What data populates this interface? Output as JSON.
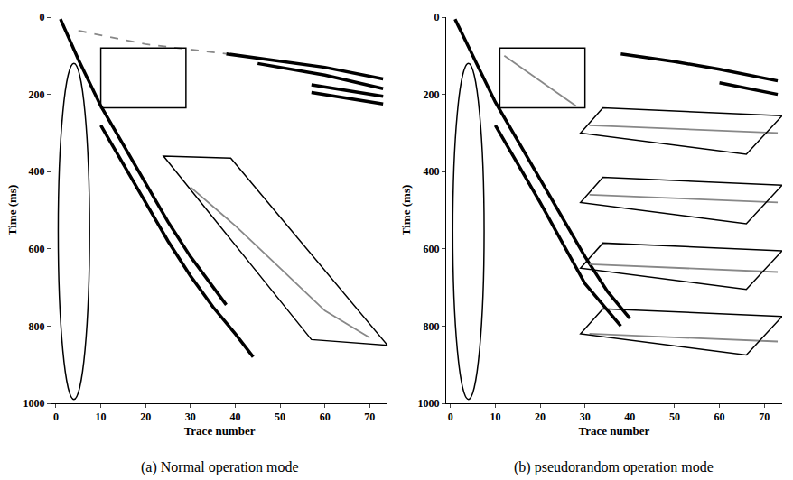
{
  "chart_data": [
    {
      "type": "line",
      "title": "(a) Normal operation mode",
      "x_label": "Trace number",
      "y_label": "Time (ms)",
      "xlim": [
        -1,
        74
      ],
      "xticks": [
        0,
        10,
        20,
        30,
        40,
        50,
        60,
        70
      ],
      "ylim": [
        0,
        1000
      ],
      "yticks": [
        0,
        200,
        400,
        600,
        800,
        1000
      ],
      "grid": false,
      "series": [
        {
          "color": "#000000",
          "line_style": "solid",
          "x": [
            1,
            5,
            10,
            15,
            20,
            25,
            30,
            35,
            38
          ],
          "values": [
            5,
            110,
            230,
            330,
            430,
            530,
            620,
            700,
            745
          ]
        },
        {
          "color": "#000000",
          "line_style": "solid",
          "x": [
            10,
            15,
            20,
            25,
            30,
            35,
            40,
            44
          ],
          "values": [
            280,
            380,
            480,
            580,
            670,
            750,
            820,
            880
          ]
        },
        {
          "color": "#888888",
          "line_style": "solid",
          "x": [
            30,
            40,
            50,
            60,
            70
          ],
          "values": [
            440,
            540,
            650,
            760,
            830
          ]
        },
        {
          "color": "#888888",
          "line_style": "dashed",
          "x": [
            5,
            20,
            38
          ],
          "values": [
            35,
            70,
            95
          ]
        },
        {
          "color": "#000000",
          "line_style": "solid",
          "x": [
            38,
            50,
            60,
            73
          ],
          "values": [
            95,
            115,
            130,
            160
          ]
        },
        {
          "color": "#000000",
          "line_style": "solid",
          "x": [
            45,
            60,
            73
          ],
          "values": [
            120,
            150,
            185
          ]
        },
        {
          "color": "#000000",
          "line_style": "solid",
          "x": [
            57,
            65,
            73
          ],
          "values": [
            175,
            190,
            205
          ]
        },
        {
          "color": "#000000",
          "line_style": "solid",
          "x": [
            57,
            65,
            73
          ],
          "values": [
            195,
            210,
            225
          ]
        }
      ],
      "regions": [
        {
          "shape": "ellipse",
          "x": [
            0.5,
            7.5
          ],
          "y": [
            120,
            990
          ]
        },
        {
          "shape": "rectangle",
          "x": [
            10,
            29
          ],
          "y": [
            80,
            235
          ]
        },
        {
          "shape": "polygon",
          "x": [
            24,
            39,
            74,
            57
          ],
          "y": [
            360,
            365,
            850,
            835
          ]
        }
      ]
    },
    {
      "type": "line",
      "title": "(b) pseudorandom operation mode",
      "x_label": "Trace number",
      "y_label": "Time (ms)",
      "xlim": [
        -1,
        74
      ],
      "xticks": [
        0,
        10,
        20,
        30,
        40,
        50,
        60,
        70
      ],
      "ylim": [
        0,
        1000
      ],
      "yticks": [
        0,
        200,
        400,
        600,
        800,
        1000
      ],
      "grid": false,
      "series": [
        {
          "color": "#000000",
          "line_style": "solid",
          "x": [
            1,
            5,
            10,
            15,
            20,
            25,
            30,
            35,
            40
          ],
          "values": [
            5,
            100,
            220,
            320,
            420,
            520,
            620,
            710,
            780
          ]
        },
        {
          "color": "#000000",
          "line_style": "solid",
          "x": [
            10,
            20,
            30,
            38
          ],
          "values": [
            280,
            480,
            690,
            800
          ]
        },
        {
          "color": "#888888",
          "line_style": "solid",
          "x": [
            12,
            20,
            28
          ],
          "values": [
            100,
            165,
            230
          ]
        },
        {
          "color": "#000000",
          "line_style": "solid",
          "x": [
            38,
            50,
            60,
            73
          ],
          "values": [
            95,
            115,
            135,
            165
          ]
        },
        {
          "color": "#000000",
          "line_style": "solid",
          "x": [
            60,
            73
          ],
          "values": [
            170,
            200
          ]
        },
        {
          "color": "#888888",
          "line_style": "solid",
          "x": [
            31,
            73
          ],
          "values": [
            280,
            300
          ]
        },
        {
          "color": "#888888",
          "line_style": "solid",
          "x": [
            31,
            73
          ],
          "values": [
            460,
            480
          ]
        },
        {
          "color": "#888888",
          "line_style": "solid",
          "x": [
            31,
            73
          ],
          "values": [
            640,
            660
          ]
        },
        {
          "color": "#888888",
          "line_style": "solid",
          "x": [
            31,
            73
          ],
          "values": [
            820,
            840
          ]
        }
      ],
      "regions": [
        {
          "shape": "ellipse",
          "x": [
            0.5,
            7.5
          ],
          "y": [
            120,
            990
          ]
        },
        {
          "shape": "rectangle",
          "x": [
            11,
            30
          ],
          "y": [
            80,
            235
          ]
        },
        {
          "shape": "polygon",
          "x": [
            29,
            34,
            74,
            66
          ],
          "y": [
            300,
            235,
            255,
            355
          ]
        },
        {
          "shape": "polygon",
          "x": [
            29,
            34,
            74,
            66
          ],
          "y": [
            480,
            415,
            435,
            535
          ]
        },
        {
          "shape": "polygon",
          "x": [
            29,
            34,
            74,
            66
          ],
          "y": [
            650,
            585,
            605,
            705
          ]
        },
        {
          "shape": "polygon",
          "x": [
            29,
            34,
            74,
            66
          ],
          "y": [
            820,
            755,
            775,
            875
          ]
        }
      ]
    }
  ]
}
